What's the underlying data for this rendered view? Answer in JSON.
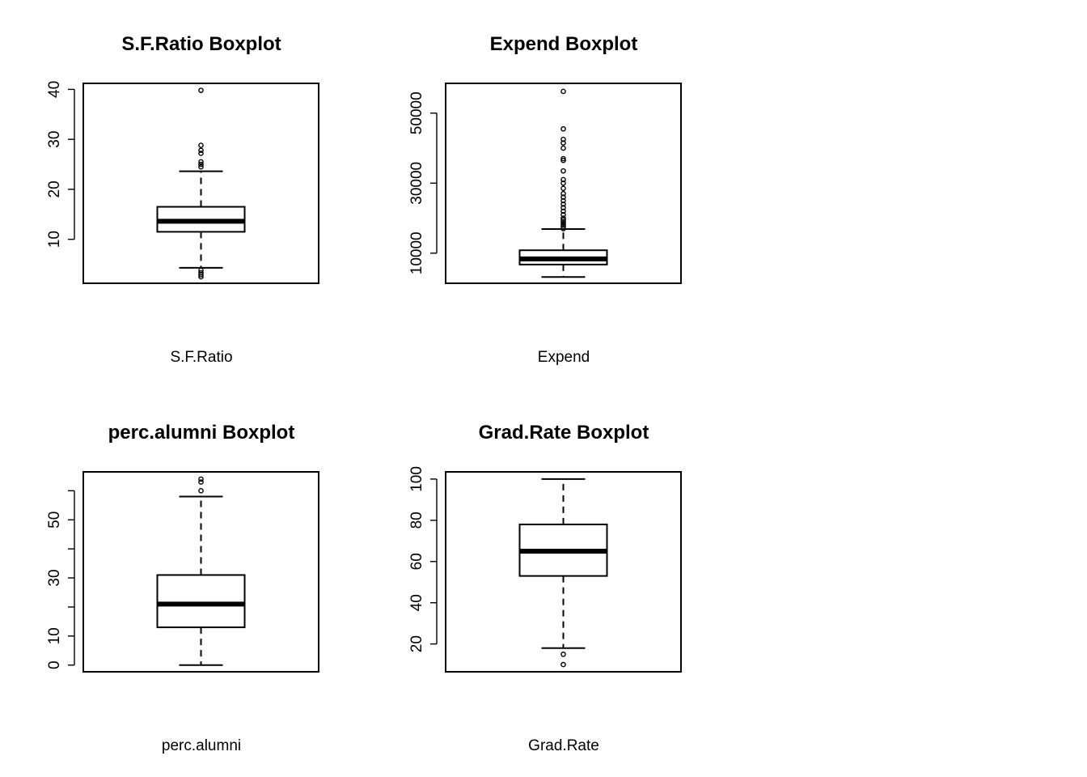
{
  "chart_data": [
    {
      "type": "boxplot",
      "title": "S.F.Ratio Boxplot",
      "xlabel": "S.F.Ratio",
      "ylim": [
        1.2,
        41.2
      ],
      "yticks": [
        10,
        20,
        30,
        40
      ],
      "box": {
        "min": 4.3,
        "q1": 11.5,
        "median": 13.6,
        "q3": 16.5,
        "max": 23.6
      },
      "outliers": [
        2.5,
        2.9,
        3.3,
        3.8,
        24.5,
        25.0,
        25.5,
        27.2,
        27.8,
        28.8,
        39.8
      ]
    },
    {
      "type": "boxplot",
      "title": "Expend Boxplot",
      "xlabel": "Expend",
      "ylim": [
        1400,
        58500
      ],
      "yticks": [
        10000,
        30000,
        50000
      ],
      "box": {
        "min": 3186,
        "q1": 6751,
        "median": 8377,
        "q3": 10830,
        "max": 16900
      },
      "outliers": [
        17000,
        17500,
        18000,
        18500,
        19000,
        19500,
        20000,
        21000,
        22000,
        23000,
        24000,
        25000,
        26000,
        27000,
        28500,
        30000,
        31000,
        33500,
        36500,
        37000,
        40000,
        41500,
        42500,
        45500,
        56200
      ]
    },
    {
      "type": "boxplot",
      "title": "perc.alumni Boxplot",
      "xlabel": "perc.alumni",
      "ylim": [
        -2.3,
        66.5
      ],
      "yticks": [
        0,
        10,
        20,
        30,
        40,
        50,
        60
      ],
      "yticklabels": [
        "0",
        "10",
        "",
        "30",
        "",
        "50",
        ""
      ],
      "box": {
        "min": 0,
        "q1": 13,
        "median": 21,
        "q3": 31,
        "max": 58
      },
      "outliers": [
        60,
        63,
        64
      ]
    },
    {
      "type": "boxplot",
      "title": "Grad.Rate Boxplot",
      "xlabel": "Grad.Rate",
      "ylim": [
        6.5,
        103.5
      ],
      "yticks": [
        20,
        40,
        60,
        80,
        100
      ],
      "box": {
        "min": 18,
        "q1": 53,
        "median": 65,
        "q3": 78,
        "max": 100
      },
      "outliers": [
        10,
        15
      ]
    }
  ]
}
